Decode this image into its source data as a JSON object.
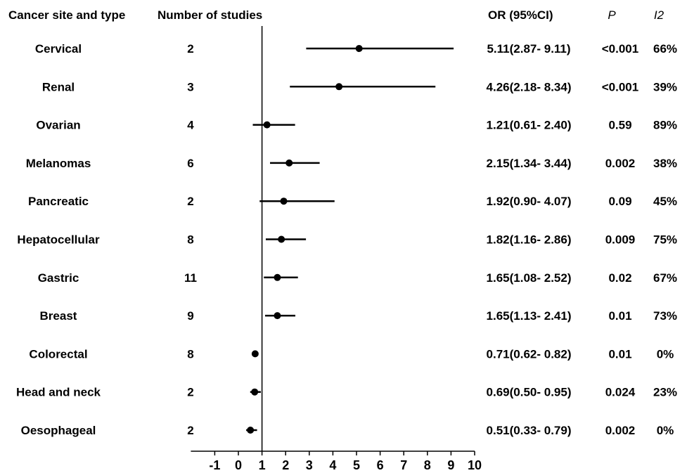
{
  "headers": {
    "site": "Cancer site and type",
    "n": "Number of studies",
    "or": "OR (95%CI)",
    "p": "P",
    "i2": "I2"
  },
  "chart_data": {
    "type": "forest",
    "x_ticks": [
      -1,
      0,
      1,
      2,
      3,
      4,
      5,
      6,
      7,
      8,
      9,
      10
    ],
    "xlim": [
      -1,
      10
    ],
    "reference_line": 1,
    "rows": [
      {
        "site": "Cervical",
        "n": "2",
        "or": 5.11,
        "lo": 2.87,
        "hi": 9.11,
        "or_text": "5.11(2.87- 9.11)",
        "p": "<0.001",
        "i2": "66%"
      },
      {
        "site": "Renal",
        "n": "3",
        "or": 4.26,
        "lo": 2.18,
        "hi": 8.34,
        "or_text": "4.26(2.18- 8.34)",
        "p": "<0.001",
        "i2": "39%"
      },
      {
        "site": "Ovarian",
        "n": "4",
        "or": 1.21,
        "lo": 0.61,
        "hi": 2.4,
        "or_text": "1.21(0.61- 2.40)",
        "p": "0.59",
        "i2": "89%"
      },
      {
        "site": "Melanomas",
        "n": "6",
        "or": 2.15,
        "lo": 1.34,
        "hi": 3.44,
        "or_text": "2.15(1.34- 3.44)",
        "p": "0.002",
        "i2": "38%"
      },
      {
        "site": "Pancreatic",
        "n": "2",
        "or": 1.92,
        "lo": 0.9,
        "hi": 4.07,
        "or_text": "1.92(0.90- 4.07)",
        "p": "0.09",
        "i2": "45%"
      },
      {
        "site": "Hepatocellular",
        "n": "8",
        "or": 1.82,
        "lo": 1.16,
        "hi": 2.86,
        "or_text": "1.82(1.16- 2.86)",
        "p": "0.009",
        "i2": "75%"
      },
      {
        "site": "Gastric",
        "n": "11",
        "or": 1.65,
        "lo": 1.08,
        "hi": 2.52,
        "or_text": "1.65(1.08- 2.52)",
        "p": "0.02",
        "i2": "67%"
      },
      {
        "site": "Breast",
        "n": "9",
        "or": 1.65,
        "lo": 1.13,
        "hi": 2.41,
        "or_text": "1.65(1.13- 2.41)",
        "p": "0.01",
        "i2": "73%"
      },
      {
        "site": "Colorectal",
        "n": "8",
        "or": 0.71,
        "lo": 0.62,
        "hi": 0.82,
        "or_text": "0.71(0.62- 0.82)",
        "p": "0.01",
        "i2": "0%"
      },
      {
        "site": "Head and neck",
        "n": "2",
        "or": 0.69,
        "lo": 0.5,
        "hi": 0.95,
        "or_text": "0.69(0.50- 0.95)",
        "p": "0.024",
        "i2": "23%"
      },
      {
        "site": "Oesophageal",
        "n": "2",
        "or": 0.51,
        "lo": 0.33,
        "hi": 0.79,
        "or_text": "0.51(0.33- 0.79)",
        "p": "0.002",
        "i2": "0%"
      }
    ]
  }
}
